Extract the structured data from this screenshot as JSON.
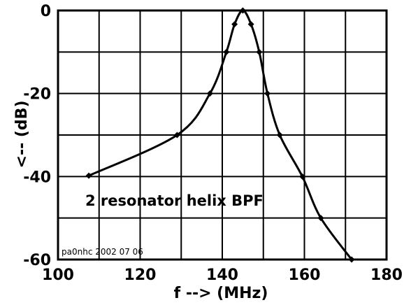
{
  "chart_data": {
    "type": "line",
    "title": "",
    "xlabel": "f --> (MHz)",
    "ylabel": "<-- (dB)",
    "xlim": [
      100,
      180
    ],
    "ylim": [
      -60,
      0
    ],
    "x_ticks": [
      "100",
      "120",
      "140",
      "160",
      "180"
    ],
    "y_ticks": [
      "0",
      "-20",
      "-40",
      "-60"
    ],
    "grid": true,
    "annotation": "2 resonator helix BPF",
    "credit": "pa0nhc 2002 07 06",
    "series": [
      {
        "points": [
          {
            "x": 107.5,
            "y": -39.8
          },
          {
            "x": 129,
            "y": -30
          },
          {
            "x": 137,
            "y": -20
          },
          {
            "x": 141,
            "y": -10
          },
          {
            "x": 143,
            "y": -3.3
          },
          {
            "x": 145,
            "y": 0
          },
          {
            "x": 147,
            "y": -3.3
          },
          {
            "x": 149,
            "y": -10
          },
          {
            "x": 151,
            "y": -20
          },
          {
            "x": 154,
            "y": -30
          },
          {
            "x": 159.5,
            "y": -40
          },
          {
            "x": 164,
            "y": -50
          },
          {
            "x": 171.5,
            "y": -60
          }
        ]
      }
    ],
    "colors": {
      "line": "#000000",
      "grid": "#000000",
      "background": "#ffffff"
    }
  }
}
